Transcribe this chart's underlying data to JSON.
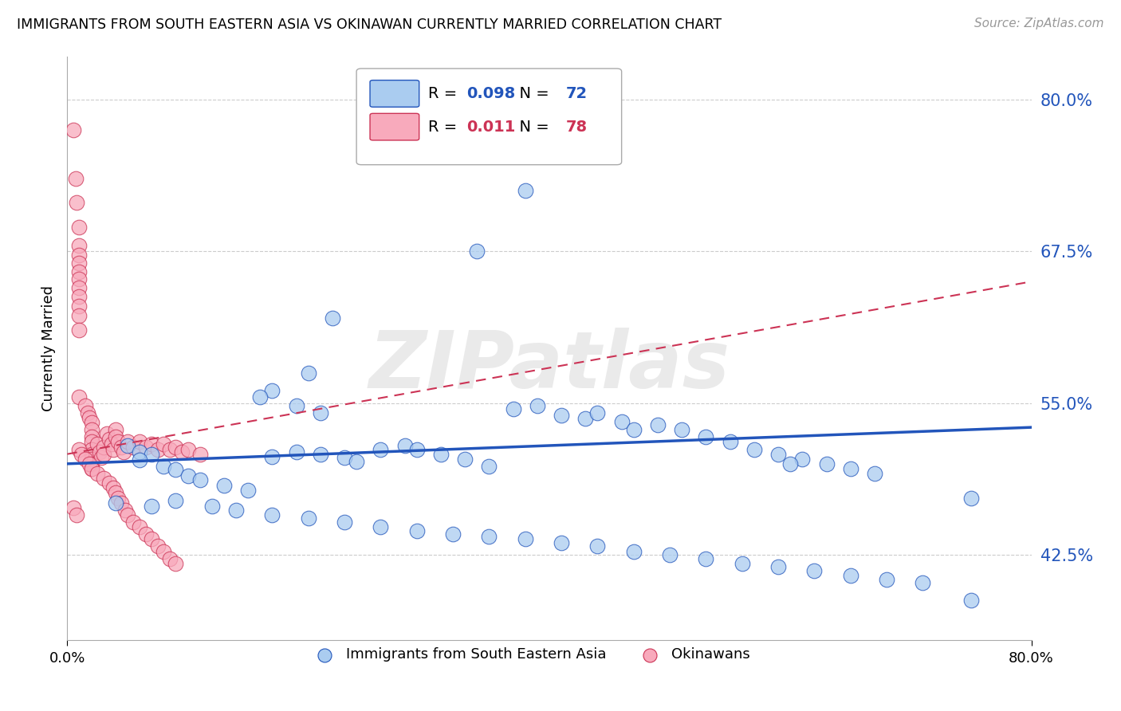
{
  "title": "IMMIGRANTS FROM SOUTH EASTERN ASIA VS OKINAWAN CURRENTLY MARRIED CORRELATION CHART",
  "source": "Source: ZipAtlas.com",
  "ylabel": "Currently Married",
  "ytick_labels": [
    "80.0%",
    "67.5%",
    "55.0%",
    "42.5%"
  ],
  "ytick_values": [
    0.8,
    0.675,
    0.55,
    0.425
  ],
  "xmin": 0.0,
  "xmax": 0.8,
  "ymin": 0.355,
  "ymax": 0.835,
  "legend_blue_r": "0.098",
  "legend_blue_n": "72",
  "legend_pink_r": "0.011",
  "legend_pink_n": "78",
  "blue_color": "#aaccf0",
  "blue_line_color": "#2255bb",
  "pink_color": "#f8aabc",
  "pink_line_color": "#cc3355",
  "watermark": "ZIPatlas",
  "blue_scatter_x": [
    0.38,
    0.34,
    0.22,
    0.2,
    0.17,
    0.16,
    0.19,
    0.21,
    0.05,
    0.06,
    0.07,
    0.06,
    0.08,
    0.09,
    0.1,
    0.11,
    0.13,
    0.15,
    0.17,
    0.19,
    0.21,
    0.23,
    0.24,
    0.26,
    0.28,
    0.29,
    0.31,
    0.33,
    0.35,
    0.37,
    0.39,
    0.41,
    0.43,
    0.44,
    0.46,
    0.47,
    0.49,
    0.51,
    0.53,
    0.55,
    0.57,
    0.59,
    0.61,
    0.63,
    0.65,
    0.67,
    0.04,
    0.07,
    0.09,
    0.12,
    0.14,
    0.17,
    0.2,
    0.23,
    0.26,
    0.29,
    0.32,
    0.35,
    0.38,
    0.41,
    0.44,
    0.47,
    0.5,
    0.53,
    0.56,
    0.59,
    0.62,
    0.65,
    0.68,
    0.71,
    0.6,
    0.75,
    0.75
  ],
  "blue_scatter_y": [
    0.725,
    0.675,
    0.62,
    0.575,
    0.56,
    0.555,
    0.548,
    0.542,
    0.515,
    0.51,
    0.508,
    0.503,
    0.498,
    0.495,
    0.49,
    0.487,
    0.482,
    0.478,
    0.506,
    0.51,
    0.508,
    0.505,
    0.502,
    0.512,
    0.515,
    0.512,
    0.508,
    0.504,
    0.498,
    0.545,
    0.548,
    0.54,
    0.537,
    0.542,
    0.535,
    0.528,
    0.532,
    0.528,
    0.522,
    0.518,
    0.512,
    0.508,
    0.504,
    0.5,
    0.496,
    0.492,
    0.468,
    0.465,
    0.47,
    0.465,
    0.462,
    0.458,
    0.455,
    0.452,
    0.448,
    0.445,
    0.442,
    0.44,
    0.438,
    0.435,
    0.432,
    0.428,
    0.425,
    0.422,
    0.418,
    0.415,
    0.412,
    0.408,
    0.405,
    0.402,
    0.5,
    0.472,
    0.388
  ],
  "pink_scatter_x": [
    0.005,
    0.007,
    0.008,
    0.01,
    0.01,
    0.01,
    0.01,
    0.01,
    0.01,
    0.01,
    0.01,
    0.01,
    0.01,
    0.01,
    0.01,
    0.015,
    0.017,
    0.018,
    0.02,
    0.02,
    0.02,
    0.02,
    0.02,
    0.02,
    0.02,
    0.02,
    0.02,
    0.025,
    0.027,
    0.028,
    0.03,
    0.03,
    0.033,
    0.035,
    0.037,
    0.038,
    0.04,
    0.04,
    0.042,
    0.045,
    0.047,
    0.05,
    0.055,
    0.06,
    0.065,
    0.07,
    0.075,
    0.08,
    0.085,
    0.09,
    0.095,
    0.1,
    0.11,
    0.005,
    0.008,
    0.01,
    0.012,
    0.015,
    0.018,
    0.02,
    0.025,
    0.03,
    0.035,
    0.038,
    0.04,
    0.042,
    0.045,
    0.048,
    0.05,
    0.055,
    0.06,
    0.065,
    0.07,
    0.075,
    0.08,
    0.085,
    0.09
  ],
  "pink_scatter_y": [
    0.775,
    0.735,
    0.715,
    0.695,
    0.68,
    0.672,
    0.665,
    0.658,
    0.652,
    0.645,
    0.638,
    0.63,
    0.622,
    0.61,
    0.555,
    0.548,
    0.542,
    0.538,
    0.534,
    0.528,
    0.522,
    0.518,
    0.512,
    0.508,
    0.504,
    0.5,
    0.496,
    0.516,
    0.51,
    0.505,
    0.514,
    0.508,
    0.525,
    0.52,
    0.516,
    0.512,
    0.528,
    0.522,
    0.518,
    0.514,
    0.51,
    0.518,
    0.514,
    0.518,
    0.514,
    0.516,
    0.512,
    0.516,
    0.512,
    0.514,
    0.51,
    0.512,
    0.508,
    0.464,
    0.458,
    0.512,
    0.508,
    0.504,
    0.5,
    0.496,
    0.492,
    0.488,
    0.484,
    0.48,
    0.476,
    0.472,
    0.468,
    0.462,
    0.458,
    0.452,
    0.448,
    0.442,
    0.438,
    0.432,
    0.428,
    0.422,
    0.418
  ],
  "blue_trend_x": [
    0.0,
    0.8
  ],
  "blue_trend_y": [
    0.5,
    0.53
  ],
  "pink_trend_x": [
    0.0,
    0.8
  ],
  "pink_trend_y": [
    0.508,
    0.65
  ]
}
